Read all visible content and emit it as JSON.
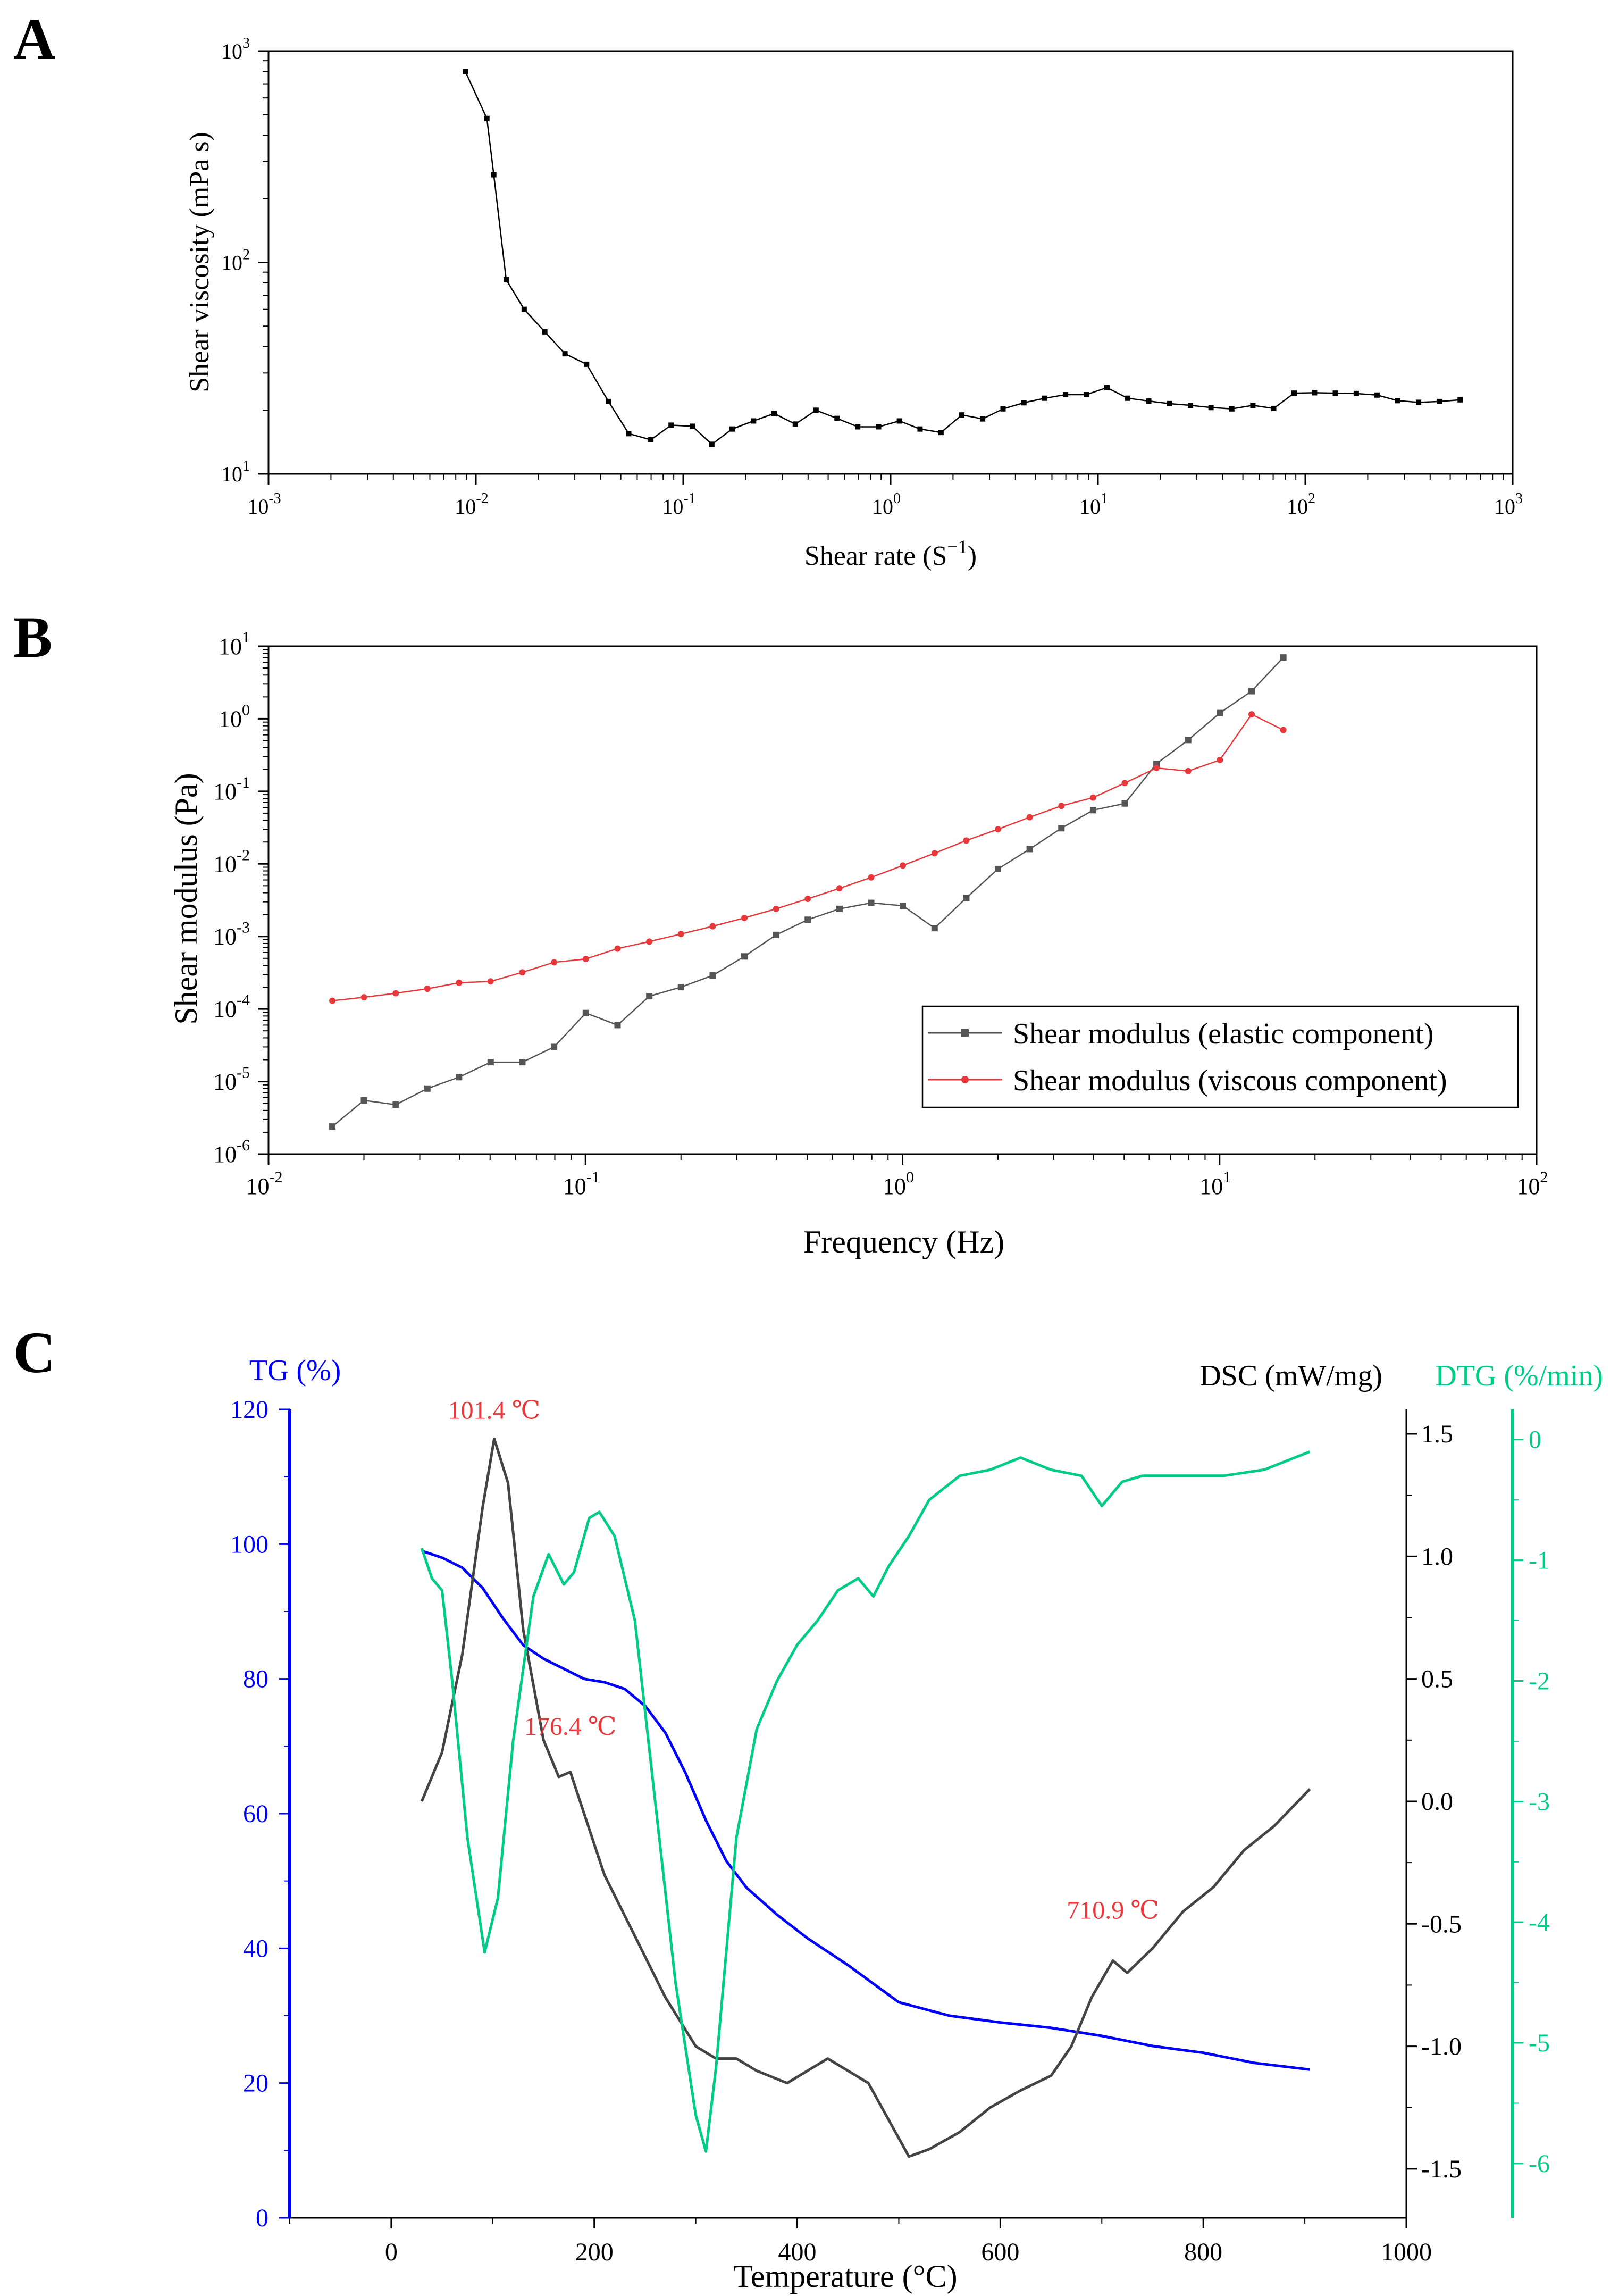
{
  "panels": {
    "a": {
      "letter": "A"
    },
    "b": {
      "letter": "B"
    },
    "c": {
      "letter": "C"
    }
  },
  "chart_data": [
    {
      "id": "a",
      "type": "line",
      "xlabel": "Shear rate (S",
      "xlabel_sup": "−1",
      "xlabel_end": ")",
      "ylabel": "Shear viscosity (mPa s)",
      "xscale": "log",
      "yscale": "log",
      "xlim": [
        0.001,
        1000
      ],
      "ylim": [
        10,
        1000
      ],
      "x_ticks": [
        "10",
        "10",
        "10",
        "10",
        "10",
        "10",
        "10"
      ],
      "x_tick_exps": [
        "-3",
        "-2",
        "-1",
        "0",
        "1",
        "2",
        "3"
      ],
      "y_ticks": [
        "10",
        "10",
        "10"
      ],
      "y_tick_exps": [
        "1",
        "2",
        "3"
      ],
      "grid": false,
      "series": [
        {
          "color": "#000000",
          "marker": "square",
          "x": [
            0.0089,
            0.0113,
            0.0122,
            0.014,
            0.0171,
            0.0215,
            0.0269,
            0.0342,
            0.0436,
            0.0546,
            0.0698,
            0.0874,
            0.1106,
            0.1374,
            0.1722,
            0.2184,
            0.2744,
            0.3471,
            0.437,
            0.5517,
            0.6945,
            0.876,
            1.103,
            1.387,
            1.751,
            2.206,
            2.779,
            3.486,
            4.395,
            5.539,
            6.981,
            8.787,
            11.05,
            13.92,
            17.58,
            22.06,
            27.95,
            35.09,
            44.21,
            55.86,
            70.38,
            88.34,
            110.8,
            139.6,
            176.1,
            221.7,
            279.3,
            351.9,
            443.7,
            558.2
          ],
          "y": [
            800,
            480,
            260,
            83,
            60,
            47,
            37,
            33,
            22,
            15.5,
            14.5,
            17,
            16.8,
            13.8,
            16.3,
            17.8,
            19.3,
            17.2,
            20,
            18.3,
            16.7,
            16.7,
            17.8,
            16.3,
            15.7,
            19,
            18.2,
            20.3,
            21.7,
            22.8,
            23.7,
            23.7,
            25.6,
            22.8,
            22.1,
            21.5,
            21.1,
            20.6,
            20.3,
            21.1,
            20.4,
            24.1,
            24.2,
            24.1,
            24,
            23.6,
            22.2,
            21.8,
            22,
            22.4
          ]
        }
      ]
    },
    {
      "id": "b",
      "type": "line",
      "xlabel": "Frequency (Hz)",
      "ylabel": "Shear modulus (Pa)",
      "xscale": "log",
      "yscale": "log",
      "xlim": [
        0.01,
        100
      ],
      "ylim": [
        1e-06,
        10
      ],
      "x_ticks": [
        "10",
        "10",
        "10",
        "10",
        "10"
      ],
      "x_tick_exps": [
        "-2",
        "-1",
        "0",
        "1",
        "2"
      ],
      "y_ticks": [
        "10",
        "10",
        "10",
        "10",
        "10",
        "10",
        "10",
        "10"
      ],
      "y_tick_exps": [
        "-6",
        "-5",
        "-4",
        "-3",
        "-2",
        "-1",
        "0",
        "1"
      ],
      "legend_position": "bottom-right",
      "grid": false,
      "series": [
        {
          "name": "Shear modulus (elastic component)",
          "color": "#555555",
          "marker": "square",
          "x": [
            0.0159,
            0.02,
            0.0252,
            0.0317,
            0.0399,
            0.0502,
            0.0632,
            0.0796,
            0.1002,
            0.1262,
            0.1589,
            0.2,
            0.2518,
            0.317,
            0.3991,
            0.5024,
            0.6325,
            0.7962,
            1.002,
            1.262,
            1.589,
            2.0,
            2.518,
            3.17,
            3.991,
            5.024,
            6.325,
            7.962,
            10.02,
            12.62,
            15.89
          ],
          "y": [
            2.4e-06,
            5.5e-06,
            4.8e-06,
            8e-06,
            1.15e-05,
            1.85e-05,
            1.85e-05,
            3e-05,
            8.8e-05,
            6e-05,
            0.00015,
            0.0002,
            0.00029,
            0.00053,
            0.00105,
            0.0017,
            0.0024,
            0.0029,
            0.00265,
            0.0013,
            0.0034,
            0.0085,
            0.016,
            0.031,
            0.055,
            0.068,
            0.24,
            0.51,
            1.2,
            2.4,
            7.0
          ]
        },
        {
          "name": "Shear modulus (viscous component)",
          "color": "#e8383b",
          "marker": "circle",
          "x": [
            0.0159,
            0.02,
            0.0252,
            0.0317,
            0.0399,
            0.0502,
            0.0632,
            0.0796,
            0.1002,
            0.1262,
            0.1589,
            0.2,
            0.2518,
            0.317,
            0.3991,
            0.5024,
            0.6325,
            0.7962,
            1.002,
            1.262,
            1.589,
            2.0,
            2.518,
            3.17,
            3.991,
            5.024,
            6.325,
            7.962,
            10.02,
            12.62,
            15.89
          ],
          "y": [
            0.00013,
            0.000145,
            0.000165,
            0.00019,
            0.00023,
            0.00024,
            0.00032,
            0.00044,
            0.00049,
            0.00068,
            0.00085,
            0.00108,
            0.00138,
            0.0018,
            0.0024,
            0.0033,
            0.0046,
            0.0065,
            0.0095,
            0.014,
            0.021,
            0.03,
            0.044,
            0.063,
            0.082,
            0.13,
            0.21,
            0.19,
            0.27,
            1.15,
            0.7
          ]
        }
      ]
    },
    {
      "id": "c",
      "type": "line",
      "xlabel": "Temperature (°C)",
      "xlim": [
        -100,
        1000
      ],
      "x_ticks": [
        "0",
        "200",
        "400",
        "600",
        "800",
        "1000"
      ],
      "x_tick_values": [
        0,
        200,
        400,
        600,
        800,
        1000
      ],
      "axes": {
        "tg": {
          "label": "TG (%)",
          "color": "#0000ff",
          "ylim": [
            0,
            120
          ],
          "ticks": [
            "0",
            "20",
            "40",
            "60",
            "80",
            "100",
            "120"
          ],
          "tick_values": [
            0,
            20,
            40,
            60,
            80,
            100,
            120
          ]
        },
        "dsc": {
          "label": "DSC (mW/mg)",
          "color": "#000000",
          "ylim": [
            -1.7,
            1.6
          ],
          "ticks": [
            "-1.5",
            "-1.0",
            "-0.5",
            "0.0",
            "0.5",
            "1.0",
            "1.5"
          ],
          "tick_values": [
            -1.5,
            -1.0,
            -0.5,
            0.0,
            0.5,
            1.0,
            1.5
          ]
        },
        "dtg": {
          "label": "DTG (%/min)",
          "color": "#00cc88",
          "ylim": [
            -6.45,
            0.25
          ],
          "ticks": [
            "0",
            "-1",
            "-2",
            "-3",
            "-4",
            "-5",
            "-6"
          ],
          "tick_values": [
            0,
            -1,
            -2,
            -3,
            -4,
            -5,
            -6
          ]
        }
      },
      "annotations": [
        {
          "text": "101.4 ℃",
          "color": "#e8383b",
          "x": 101.4,
          "axis": "dsc",
          "y": 1.54
        },
        {
          "text": "176.4 ℃",
          "color": "#e8383b",
          "x": 176.4,
          "axis": "dsc",
          "y": 0.25
        },
        {
          "text": "710.9 ℃",
          "color": "#e8383b",
          "x": 710.9,
          "axis": "dsc",
          "y": -0.5
        }
      ],
      "grid": false,
      "series": [
        {
          "id": "tg",
          "axis": "tg",
          "color": "#0000ff",
          "x": [
            30,
            50,
            70,
            90,
            110,
            130,
            150,
            170,
            190,
            210,
            230,
            250,
            270,
            290,
            310,
            330,
            350,
            380,
            410,
            450,
            500,
            550,
            600,
            650,
            700,
            750,
            800,
            850,
            905
          ],
          "y": [
            99,
            98,
            96.5,
            93.5,
            89,
            85,
            83,
            81.5,
            80,
            79.5,
            78.5,
            76,
            72,
            66,
            59,
            53,
            49,
            45,
            41.5,
            37.5,
            32,
            30,
            29,
            28.2,
            27,
            25.5,
            24.5,
            23,
            22
          ]
        },
        {
          "id": "dsc",
          "axis": "dsc",
          "color": "#444444",
          "x": [
            30,
            50,
            70,
            90,
            101.4,
            115,
            130,
            150,
            165,
            176.4,
            190,
            210,
            240,
            270,
            300,
            320,
            340,
            360,
            390,
            410,
            430,
            450,
            470,
            490,
            510,
            530,
            560,
            590,
            620,
            650,
            670,
            690,
            710.9,
            725,
            750,
            780,
            810,
            840,
            870,
            905
          ],
          "y": [
            0.0,
            0.2,
            0.6,
            1.2,
            1.48,
            1.3,
            0.7,
            0.25,
            0.1,
            0.12,
            -0.05,
            -0.3,
            -0.55,
            -0.8,
            -1.0,
            -1.05,
            -1.05,
            -1.1,
            -1.15,
            -1.1,
            -1.05,
            -1.1,
            -1.15,
            -1.3,
            -1.45,
            -1.42,
            -1.35,
            -1.25,
            -1.18,
            -1.12,
            -1.0,
            -0.8,
            -0.65,
            -0.7,
            -0.6,
            -0.45,
            -0.35,
            -0.2,
            -0.1,
            0.05
          ]
        },
        {
          "id": "dtg",
          "axis": "dtg",
          "color": "#00cc88",
          "x": [
            30,
            40,
            50,
            60,
            75,
            92,
            105,
            120,
            140,
            155,
            170,
            180,
            195,
            205,
            220,
            240,
            260,
            280,
            300,
            310,
            320,
            340,
            360,
            380,
            400,
            420,
            440,
            460,
            475,
            490,
            510,
            530,
            560,
            590,
            620,
            650,
            680,
            700,
            720,
            740,
            780,
            820,
            860,
            905
          ],
          "y": [
            -0.9,
            -1.15,
            -1.25,
            -2.0,
            -3.3,
            -4.25,
            -3.8,
            -2.5,
            -1.3,
            -0.95,
            -1.2,
            -1.1,
            -0.65,
            -0.6,
            -0.8,
            -1.5,
            -3.0,
            -4.5,
            -5.6,
            -5.9,
            -5.2,
            -3.3,
            -2.4,
            -2.0,
            -1.7,
            -1.5,
            -1.25,
            -1.15,
            -1.3,
            -1.05,
            -0.8,
            -0.5,
            -0.3,
            -0.25,
            -0.15,
            -0.25,
            -0.3,
            -0.55,
            -0.35,
            -0.3,
            -0.3,
            -0.3,
            -0.25,
            -0.1
          ]
        }
      ]
    }
  ]
}
